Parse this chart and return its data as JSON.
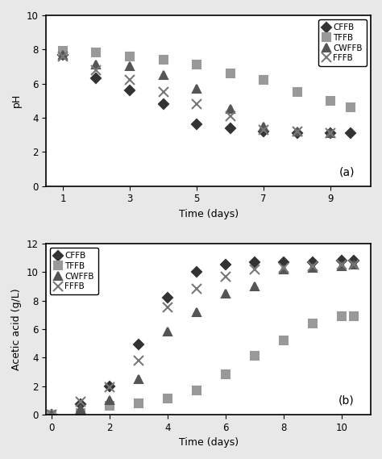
{
  "ph_data": {
    "CFFB": {
      "x": [
        1,
        2,
        3,
        4,
        5,
        6,
        7,
        8,
        9,
        9.6
      ],
      "y": [
        7.7,
        6.3,
        5.6,
        4.8,
        3.6,
        3.4,
        3.2,
        3.1,
        3.1,
        3.1
      ]
    },
    "TFFB": {
      "x": [
        1,
        2,
        3,
        4,
        5,
        6,
        7,
        8,
        9,
        9.6
      ],
      "y": [
        7.9,
        7.8,
        7.6,
        7.4,
        7.1,
        6.6,
        6.2,
        5.5,
        5.0,
        4.6
      ]
    },
    "CWFFB": {
      "x": [
        1,
        2,
        3,
        4,
        5,
        6,
        7,
        8,
        9
      ],
      "y": [
        7.7,
        7.1,
        7.0,
        6.5,
        5.7,
        4.5,
        3.5,
        3.2,
        3.1
      ]
    },
    "FFFB": {
      "x": [
        1,
        2,
        3,
        4,
        5,
        6,
        7,
        8,
        9
      ],
      "y": [
        7.6,
        6.8,
        6.2,
        5.5,
        4.8,
        4.1,
        3.3,
        3.2,
        3.1
      ]
    }
  },
  "acetic_data": {
    "CFFB": {
      "x": [
        0,
        1,
        2,
        3,
        4,
        5,
        6,
        7,
        8,
        9,
        10,
        10.4
      ],
      "y": [
        0.0,
        0.7,
        2.0,
        4.9,
        8.2,
        10.0,
        10.5,
        10.7,
        10.7,
        10.7,
        10.8,
        10.8
      ]
    },
    "TFFB": {
      "x": [
        0,
        1,
        2,
        3,
        4,
        5,
        6,
        7,
        8,
        9,
        10,
        10.4
      ],
      "y": [
        0.0,
        0.1,
        0.6,
        0.8,
        1.1,
        1.7,
        2.8,
        4.1,
        5.2,
        6.4,
        6.9,
        6.9
      ]
    },
    "CWFFB": {
      "x": [
        0,
        1,
        2,
        3,
        4,
        5,
        6,
        7,
        8,
        9,
        10,
        10.4
      ],
      "y": [
        0.0,
        0.4,
        1.0,
        2.5,
        5.8,
        7.2,
        8.5,
        9.0,
        10.2,
        10.3,
        10.4,
        10.5
      ]
    },
    "FFFB": {
      "x": [
        0,
        1,
        2,
        3,
        4,
        5,
        6,
        7,
        8,
        9,
        10,
        10.4
      ],
      "y": [
        0.0,
        0.9,
        1.9,
        3.8,
        7.5,
        8.8,
        9.7,
        10.2,
        10.3,
        10.4,
        10.5,
        10.5
      ]
    }
  },
  "colors": {
    "CFFB": "#333333",
    "TFFB": "#999999",
    "CWFFB": "#555555",
    "FFFB": "#777777"
  },
  "markers": {
    "CFFB": "D",
    "TFFB": "s",
    "CWFFB": "^",
    "FFFB": "x"
  },
  "marker_sizes": {
    "CFFB": 6,
    "TFFB": 7,
    "CWFFB": 7,
    "FFFB": 8
  },
  "ph_ylim": [
    0,
    10
  ],
  "ph_xlim": [
    0.5,
    10.2
  ],
  "ph_yticks": [
    0,
    2,
    4,
    6,
    8,
    10
  ],
  "ph_xticks": [
    1,
    3,
    5,
    7,
    9
  ],
  "acetic_ylim": [
    0,
    12
  ],
  "acetic_xlim": [
    -0.2,
    11.0
  ],
  "acetic_yticks": [
    0,
    2,
    4,
    6,
    8,
    10,
    12
  ],
  "acetic_xticks": [
    0,
    2,
    4,
    6,
    8,
    10
  ],
  "xlabel": "Time (days)",
  "ph_ylabel": "pH",
  "acetic_ylabel": "Acetic acid (g/L)",
  "label_a": "(a)",
  "label_b": "(b)",
  "fig_facecolor": "#e8e8e8",
  "ax_facecolor": "#ffffff"
}
